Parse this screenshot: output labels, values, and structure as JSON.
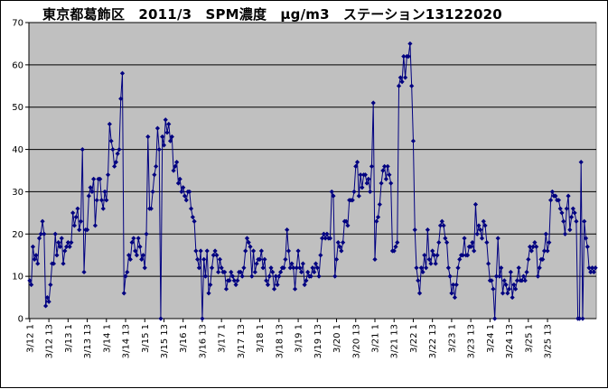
{
  "chart_data": {
    "type": "line",
    "title": "東京都葛飾区　2011/3　SPM濃度　μg/m3　ステーション13122020",
    "xlabel": "",
    "ylabel": "",
    "ylim": [
      0,
      70
    ],
    "y_ticks": [
      "0",
      "10",
      "20",
      "30",
      "40",
      "50",
      "60",
      "70"
    ],
    "x_tick_labels": [
      "3/12 1",
      "3/12 13",
      "3/13 1",
      "3/13 13",
      "3/14 1",
      "3/14 13",
      "3/15 1",
      "3/15 13",
      "3/16 1",
      "3/16 13",
      "3/17 1",
      "3/17 13",
      "3/18 1",
      "3/18 13",
      "3/19 1",
      "3/19 13",
      "3/20 1",
      "3/20 13",
      "3/21 1",
      "3/21 13",
      "3/22 1",
      "3/22 13",
      "3/23 1",
      "3/23 13",
      "3/24 1",
      "3/24 13",
      "3/25 1",
      "3/25 13"
    ],
    "grid": true,
    "legend": "none",
    "plot_background": "#c0c0c0",
    "series_color": "#000080",
    "series": [
      {
        "values": [
          9,
          8,
          17,
          14,
          15,
          13,
          19,
          20,
          23,
          20,
          3,
          5,
          4,
          8,
          13,
          13,
          20,
          15,
          18,
          17,
          19,
          13,
          16,
          17,
          18,
          17,
          18,
          25,
          22,
          24,
          26,
          21,
          23,
          40,
          11,
          21,
          21,
          29,
          31,
          30,
          33,
          22,
          28,
          33,
          33,
          28,
          26,
          30,
          28,
          34,
          46,
          42,
          40,
          36,
          37,
          39,
          40,
          52,
          58,
          6,
          10,
          11,
          15,
          14,
          18,
          19,
          16,
          15,
          19,
          17,
          14,
          15,
          12,
          20,
          43,
          26,
          26,
          30,
          34,
          36,
          45,
          40,
          0,
          43,
          41,
          47,
          44,
          46,
          42,
          43,
          35,
          36,
          37,
          32,
          33,
          30,
          31,
          29,
          28,
          30,
          30,
          26,
          24,
          23,
          16,
          14,
          12,
          16,
          0,
          14,
          10,
          16,
          6,
          8,
          12,
          15,
          16,
          15,
          11,
          14,
          12,
          11,
          11,
          7,
          9,
          9,
          11,
          10,
          9,
          8,
          9,
          11,
          11,
          10,
          12,
          16,
          19,
          18,
          17,
          10,
          16,
          11,
          13,
          14,
          14,
          16,
          12,
          14,
          9,
          8,
          10,
          12,
          11,
          7,
          10,
          8,
          10,
          11,
          12,
          12,
          14,
          21,
          16,
          12,
          13,
          12,
          7,
          12,
          16,
          12,
          11,
          13,
          8,
          9,
          11,
          10,
          10,
          12,
          11,
          13,
          12,
          10,
          15,
          19,
          20,
          19,
          20,
          19,
          19,
          30,
          29,
          10,
          14,
          18,
          17,
          16,
          18,
          23,
          23,
          22,
          28,
          28,
          28,
          30,
          36,
          37,
          29,
          34,
          31,
          34,
          34,
          32,
          33,
          30,
          36,
          51,
          14,
          23,
          24,
          27,
          32,
          35,
          36,
          33,
          36,
          34,
          32,
          16,
          16,
          17,
          18,
          55,
          57,
          56,
          62,
          57,
          62,
          62,
          65,
          55,
          42,
          21,
          12,
          9,
          6,
          12,
          11,
          15,
          12,
          21,
          14,
          13,
          16,
          15,
          13,
          15,
          18,
          22,
          23,
          22,
          19,
          18,
          12,
          10,
          6,
          8,
          5,
          8,
          12,
          14,
          15,
          15,
          19,
          15,
          15,
          17,
          17,
          18,
          16,
          27,
          20,
          22,
          21,
          19,
          23,
          22,
          18,
          13,
          9,
          9,
          7,
          0,
          10,
          19,
          10,
          12,
          6,
          9,
          8,
          6,
          7,
          11,
          5,
          8,
          7,
          9,
          12,
          9,
          9,
          10,
          9,
          11,
          14,
          17,
          16,
          17,
          18,
          17,
          10,
          12,
          14,
          14,
          16,
          20,
          16,
          18,
          28,
          30,
          29,
          29,
          28,
          28,
          26,
          25,
          23,
          20,
          26,
          29,
          21,
          24,
          26,
          25,
          23,
          0,
          0,
          37,
          0,
          23,
          19,
          17,
          12,
          11,
          12,
          11,
          12
        ]
      }
    ]
  }
}
